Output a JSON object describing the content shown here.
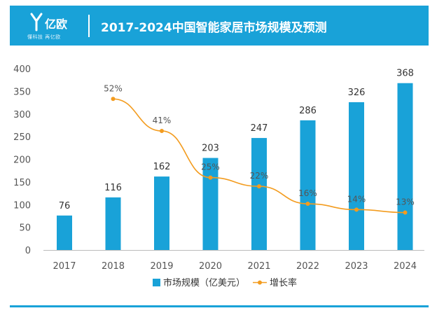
{
  "header": {
    "logo_text": "亿欧",
    "logo_sub": "懂科技 再亿欧",
    "title": "2017-2024中国智能家居市场规模及预测"
  },
  "colors": {
    "banner": "#19a2d8",
    "bar": "#19a2d8",
    "line": "#f39c1f"
  },
  "chart_data": {
    "type": "bar",
    "categories": [
      "2017",
      "2018",
      "2019",
      "2020",
      "2021",
      "2022",
      "2023",
      "2024"
    ],
    "series": [
      {
        "name": "市场规模（亿美元）",
        "type": "bar",
        "values": [
          76,
          116,
          162,
          203,
          247,
          286,
          326,
          368
        ],
        "labels": [
          "76",
          "116",
          "162",
          "203",
          "247",
          "286",
          "326",
          "368"
        ]
      },
      {
        "name": "增长率",
        "type": "line",
        "x": [
          "2018",
          "2019",
          "2020",
          "2021",
          "2022",
          "2023",
          "2024"
        ],
        "values_percent": [
          52,
          41,
          25,
          22,
          16,
          14,
          13
        ],
        "labels": [
          "52%",
          "41%",
          "25%",
          "22%",
          "16%",
          "14%",
          "13%"
        ]
      }
    ],
    "y_ticks": [
      "0",
      "50",
      "100",
      "150",
      "200",
      "250",
      "300",
      "350",
      "400"
    ],
    "ylim": [
      0,
      400
    ],
    "grid": false,
    "legend_position": "bottom-center"
  }
}
